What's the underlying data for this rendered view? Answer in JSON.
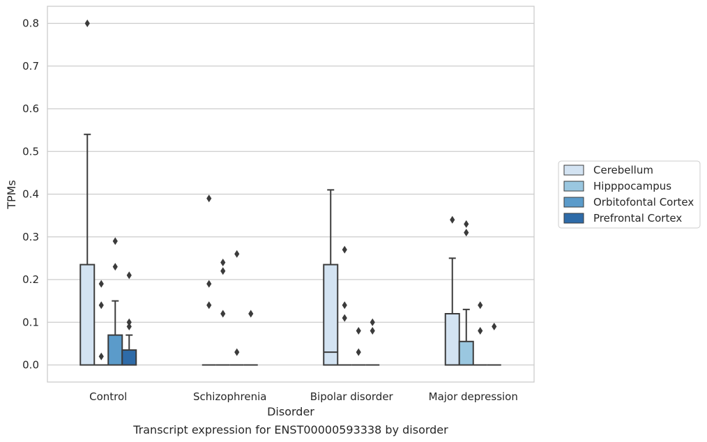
{
  "chart_data": {
    "type": "box",
    "title": "",
    "caption": "Transcript expression for ENST00000593338 by disorder",
    "xlabel": "Disorder",
    "ylabel": "TPMs",
    "ylim": [
      -0.04,
      0.84
    ],
    "yticks": [
      0.0,
      0.1,
      0.2,
      0.3,
      0.4,
      0.5,
      0.6,
      0.7,
      0.8
    ],
    "ytick_labels": [
      "0.0",
      "0.1",
      "0.2",
      "0.3",
      "0.4",
      "0.5",
      "0.6",
      "0.7",
      "0.8"
    ],
    "grid": "horizontal",
    "legend_position": "right",
    "categories": [
      "Control",
      "Schizophrenia",
      "Bipolar disorder",
      "Major depression"
    ],
    "series": [
      {
        "name": "Cerebellum",
        "color": "#d3e3f2",
        "boxes": [
          {
            "q1": 0,
            "median": 0,
            "q3": 0.235,
            "whislo": 0,
            "whishi": 0.54,
            "fliers": [
              0.8
            ]
          },
          {
            "q1": 0,
            "median": 0,
            "q3": 0,
            "whislo": 0,
            "whishi": 0,
            "fliers": [
              0.39,
              0.19,
              0.14
            ]
          },
          {
            "q1": 0,
            "median": 0.03,
            "q3": 0.235,
            "whislo": 0,
            "whishi": 0.41,
            "fliers": []
          },
          {
            "q1": 0,
            "median": 0,
            "q3": 0.12,
            "whislo": 0,
            "whishi": 0.25,
            "fliers": [
              0.34
            ]
          }
        ]
      },
      {
        "name": "Hipppocampus",
        "color": "#9ac7e0",
        "boxes": [
          {
            "q1": 0,
            "median": 0,
            "q3": 0,
            "whislo": 0,
            "whishi": 0,
            "fliers": [
              0.19,
              0.14,
              0.02
            ]
          },
          {
            "q1": 0,
            "median": 0,
            "q3": 0,
            "whislo": 0,
            "whishi": 0,
            "fliers": [
              0.24,
              0.22,
              0.12
            ]
          },
          {
            "q1": 0,
            "median": 0,
            "q3": 0,
            "whislo": 0,
            "whishi": 0,
            "fliers": [
              0.27,
              0.14,
              0.11
            ]
          },
          {
            "q1": 0,
            "median": 0,
            "q3": 0.055,
            "whislo": 0,
            "whishi": 0.13,
            "fliers": [
              0.33,
              0.31
            ]
          }
        ]
      },
      {
        "name": "Orbitofontal Cortex",
        "color": "#5b9bca",
        "boxes": [
          {
            "q1": 0,
            "median": 0,
            "q3": 0.07,
            "whislo": 0,
            "whishi": 0.15,
            "fliers": [
              0.29,
              0.23
            ]
          },
          {
            "q1": 0,
            "median": 0,
            "q3": 0,
            "whislo": 0,
            "whishi": 0,
            "fliers": [
              0.26,
              0.03
            ]
          },
          {
            "q1": 0,
            "median": 0,
            "q3": 0,
            "whislo": 0,
            "whishi": 0,
            "fliers": [
              0.08,
              0.03
            ]
          },
          {
            "q1": 0,
            "median": 0,
            "q3": 0,
            "whislo": 0,
            "whishi": 0,
            "fliers": [
              0.14,
              0.08
            ]
          }
        ]
      },
      {
        "name": "Prefrontal Cortex",
        "color": "#2e6ba8",
        "boxes": [
          {
            "q1": 0,
            "median": 0,
            "q3": 0.035,
            "whislo": 0,
            "whishi": 0.07,
            "fliers": [
              0.21,
              0.1,
              0.09
            ]
          },
          {
            "q1": 0,
            "median": 0,
            "q3": 0,
            "whislo": 0,
            "whishi": 0,
            "fliers": [
              0.12
            ]
          },
          {
            "q1": 0,
            "median": 0,
            "q3": 0,
            "whislo": 0,
            "whishi": 0,
            "fliers": [
              0.1,
              0.08
            ]
          },
          {
            "q1": 0,
            "median": 0,
            "q3": 0,
            "whislo": 0,
            "whishi": 0,
            "fliers": [
              0.09
            ]
          }
        ]
      }
    ],
    "colors": {
      "grid": "#cccccc",
      "frame": "#cccccc",
      "line": "#3b3b3b",
      "legend_border": "#cccccc"
    }
  }
}
